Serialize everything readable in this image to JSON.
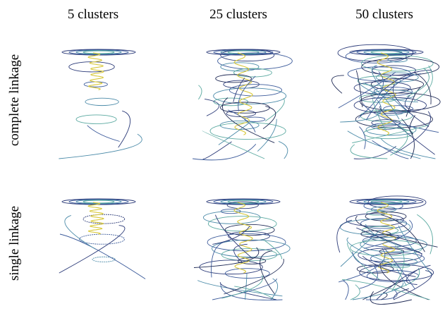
{
  "columns": [
    "5 clusters",
    "25 clusters",
    "50 clusters"
  ],
  "rows": [
    "complete linkage",
    "single linkage"
  ]
}
